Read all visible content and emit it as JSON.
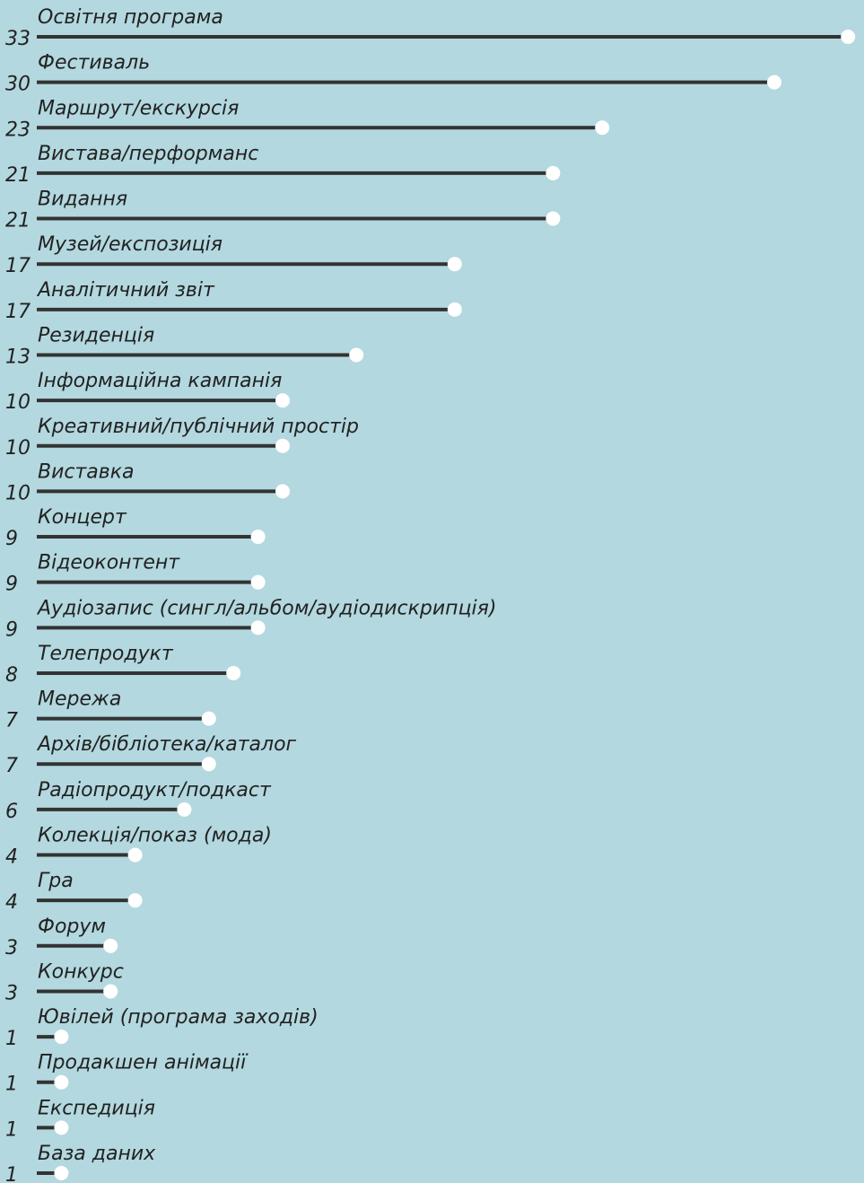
{
  "chart_data": {
    "type": "lollipop",
    "categories": [
      "Освітня програма",
      "Фестиваль",
      "Маршрут/екскурсія",
      "Вистава/перформанс",
      "Видання",
      "Музей/експозиція",
      "Аналітичний звіт",
      "Резиденція",
      "Інформаційна кампанія",
      "Креативний/публічний простір",
      "Виставка",
      "Концерт",
      "Відеоконтент",
      "Аудіозапис (сингл/альбом/аудіодискрипція)",
      "Телепродукт",
      "Мережа",
      "Архів/бібліотека/каталог",
      "Радіопродукт/подкаст",
      "Колекція/показ (мода)",
      "Гра",
      "Форум",
      "Конкурс",
      "Ювілей (програма заходів)",
      "Продакшен анімації",
      "Експедиція",
      "База даних"
    ],
    "values": [
      33,
      30,
      23,
      21,
      21,
      17,
      17,
      13,
      10,
      10,
      10,
      9,
      9,
      9,
      8,
      7,
      7,
      6,
      4,
      4,
      3,
      3,
      1,
      1,
      1,
      1
    ],
    "color": "#333333",
    "marker_color": "#ffffff",
    "background": "#b3d8df"
  }
}
